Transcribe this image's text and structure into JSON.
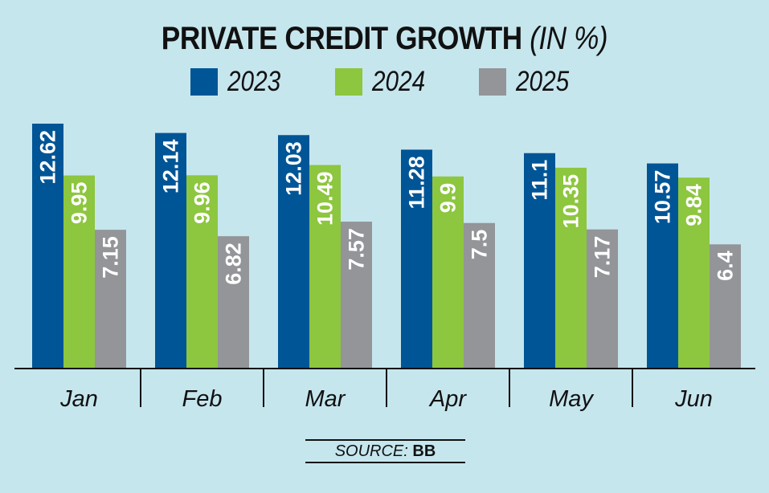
{
  "chart_data": {
    "type": "bar",
    "title": "PRIVATE CREDIT GROWTH",
    "subtitle": "(IN %)",
    "categories": [
      "Jan",
      "Feb",
      "Mar",
      "Apr",
      "May",
      "Jun"
    ],
    "series": [
      {
        "name": "2023",
        "color": "#005596",
        "values": [
          12.62,
          12.14,
          12.03,
          11.28,
          11.1,
          10.57
        ],
        "labels": [
          "12.62",
          "12.14",
          "12.03",
          "11.28",
          "11.1",
          "10.57"
        ]
      },
      {
        "name": "2024",
        "color": "#8dc63f",
        "values": [
          9.95,
          9.96,
          10.49,
          9.9,
          10.35,
          9.84
        ],
        "labels": [
          "9.95",
          "9.96",
          "10.49",
          "9.9",
          "10.35",
          "9.84"
        ]
      },
      {
        "name": "2025",
        "color": "#939598",
        "values": [
          7.15,
          6.82,
          7.57,
          7.5,
          7.17,
          6.4
        ],
        "labels": [
          "7.15",
          "6.82",
          "7.57",
          "7.5",
          "7.17",
          "6.4"
        ]
      }
    ],
    "ylim": [
      0,
      13
    ],
    "grid": false,
    "legend_position": "top-center"
  },
  "source": {
    "label": "SOURCE:",
    "value": "BB"
  }
}
